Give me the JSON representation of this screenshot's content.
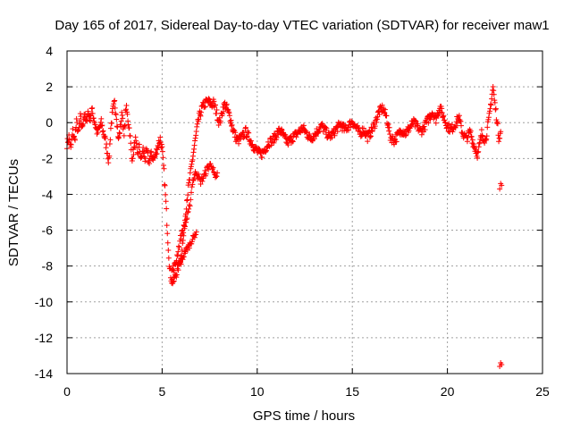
{
  "chart_data": {
    "type": "scatter",
    "title": "Day 165 of 2017, Sidereal Day-to-day VTEC variation (SDTVAR) for receiver maw1",
    "xlabel": "GPS time / hours",
    "ylabel": "SDTVAR / TECUs",
    "xlim": [
      0,
      25
    ],
    "ylim": [
      -14,
      4
    ],
    "x_ticks": [
      0,
      5,
      10,
      15,
      20,
      25
    ],
    "y_ticks": [
      -14,
      -12,
      -10,
      -8,
      -6,
      -4,
      -2,
      0,
      2,
      4
    ],
    "grid": true,
    "marker": "+",
    "color": "#ff0000",
    "series": [
      {
        "name": "SDTVAR",
        "trace": [
          [
            0.0,
            -1.2
          ],
          [
            0.1,
            -0.8
          ],
          [
            0.2,
            -1.5
          ],
          [
            0.3,
            -0.5
          ],
          [
            0.4,
            -1.0
          ],
          [
            0.5,
            0.0
          ],
          [
            0.6,
            -0.6
          ],
          [
            0.7,
            0.3
          ],
          [
            0.8,
            -0.3
          ],
          [
            0.9,
            0.5
          ],
          [
            1.0,
            0.0
          ],
          [
            1.1,
            0.6
          ],
          [
            1.2,
            0.2
          ],
          [
            1.3,
            0.7
          ],
          [
            1.4,
            0.3
          ],
          [
            1.5,
            -0.2
          ],
          [
            1.6,
            -0.6
          ],
          [
            1.7,
            -0.3
          ],
          [
            1.8,
            0.0
          ],
          [
            1.9,
            -0.5
          ],
          [
            2.0,
            -0.9
          ],
          [
            2.1,
            -1.5
          ],
          [
            2.2,
            -2.2
          ],
          [
            2.3,
            -0.3
          ],
          [
            2.4,
            0.6
          ],
          [
            2.5,
            1.1
          ],
          [
            2.6,
            0.4
          ],
          [
            2.7,
            -1.0
          ],
          [
            2.8,
            -0.3
          ],
          [
            2.9,
            0.6
          ],
          [
            3.0,
            -0.8
          ],
          [
            3.1,
            0.9
          ],
          [
            3.2,
            0.2
          ],
          [
            3.3,
            -0.5
          ],
          [
            3.4,
            -2.0
          ],
          [
            3.5,
            -1.6
          ],
          [
            3.6,
            -1.0
          ],
          [
            3.7,
            -1.8
          ],
          [
            3.8,
            -1.4
          ],
          [
            3.9,
            -2.1
          ],
          [
            4.0,
            -1.5
          ],
          [
            4.1,
            -2.0
          ],
          [
            4.2,
            -1.6
          ],
          [
            4.3,
            -2.2
          ],
          [
            4.4,
            -1.8
          ],
          [
            4.5,
            -1.9
          ],
          [
            4.6,
            -2.0
          ],
          [
            4.7,
            -1.6
          ],
          [
            4.8,
            -1.2
          ],
          [
            4.9,
            -0.9
          ],
          [
            5.0,
            -1.5
          ],
          [
            5.1,
            -2.8
          ],
          [
            5.2,
            -4.5
          ],
          [
            5.3,
            -6.5
          ],
          [
            5.4,
            -8.2
          ],
          [
            5.5,
            -8.8
          ],
          [
            5.6,
            -8.9
          ],
          [
            5.7,
            -8.5
          ],
          [
            5.8,
            -8.3
          ],
          [
            5.9,
            -7.8
          ],
          [
            6.0,
            -7.4
          ],
          [
            6.1,
            -6.6
          ],
          [
            6.2,
            -5.4
          ],
          [
            6.3,
            -4.3
          ],
          [
            6.4,
            -3.5
          ],
          [
            6.5,
            -2.8
          ],
          [
            6.6,
            -2.0
          ],
          [
            6.7,
            -1.3
          ],
          [
            6.8,
            -0.6
          ],
          [
            6.9,
            0.1
          ],
          [
            7.0,
            0.5
          ],
          [
            7.1,
            0.8
          ],
          [
            7.2,
            1.0
          ],
          [
            7.3,
            1.1
          ],
          [
            7.4,
            1.2
          ],
          [
            7.5,
            1.1
          ],
          [
            7.6,
            1.0
          ],
          [
            7.7,
            1.1
          ],
          [
            7.8,
            0.8
          ],
          [
            7.9,
            0.4
          ],
          [
            8.0,
            0.0
          ],
          [
            8.1,
            0.3
          ],
          [
            8.2,
            0.8
          ],
          [
            8.3,
            1.0
          ],
          [
            8.4,
            0.8
          ],
          [
            8.5,
            0.5
          ],
          [
            8.6,
            0.2
          ],
          [
            8.7,
            -0.3
          ],
          [
            8.8,
            -0.6
          ],
          [
            8.9,
            -0.9
          ],
          [
            9.0,
            -1.0
          ],
          [
            9.2,
            -0.8
          ],
          [
            9.4,
            -0.5
          ],
          [
            9.6,
            -0.9
          ],
          [
            9.8,
            -1.3
          ],
          [
            10.0,
            -1.6
          ],
          [
            10.2,
            -1.8
          ],
          [
            10.4,
            -1.5
          ],
          [
            10.6,
            -1.1
          ],
          [
            10.8,
            -1.0
          ],
          [
            11.0,
            -0.7
          ],
          [
            11.2,
            -0.4
          ],
          [
            11.4,
            -0.8
          ],
          [
            11.6,
            -1.1
          ],
          [
            11.8,
            -0.9
          ],
          [
            12.0,
            -0.7
          ],
          [
            12.2,
            -0.5
          ],
          [
            12.4,
            -0.3
          ],
          [
            12.6,
            -0.6
          ],
          [
            12.8,
            -0.9
          ],
          [
            13.0,
            -0.7
          ],
          [
            13.2,
            -0.4
          ],
          [
            13.4,
            -0.2
          ],
          [
            13.6,
            -0.5
          ],
          [
            13.8,
            -0.8
          ],
          [
            14.0,
            -0.6
          ],
          [
            14.2,
            -0.3
          ],
          [
            14.4,
            -0.1
          ],
          [
            14.6,
            -0.4
          ],
          [
            14.8,
            -0.2
          ],
          [
            15.0,
            0.1
          ],
          [
            15.2,
            -0.3
          ],
          [
            15.4,
            -0.6
          ],
          [
            15.6,
            -0.4
          ],
          [
            15.8,
            -0.8
          ],
          [
            16.0,
            -0.5
          ],
          [
            16.2,
            0.0
          ],
          [
            16.4,
            0.6
          ],
          [
            16.6,
            0.8
          ],
          [
            16.8,
            0.3
          ],
          [
            17.0,
            -0.8
          ],
          [
            17.2,
            -1.0
          ],
          [
            17.4,
            -0.7
          ],
          [
            17.6,
            -0.4
          ],
          [
            17.8,
            -0.6
          ],
          [
            18.0,
            -0.3
          ],
          [
            18.2,
            0.0
          ],
          [
            18.4,
            -0.2
          ],
          [
            18.6,
            -0.5
          ],
          [
            18.8,
            -0.2
          ],
          [
            19.0,
            0.2
          ],
          [
            19.2,
            0.6
          ],
          [
            19.4,
            0.2
          ],
          [
            19.6,
            0.9
          ],
          [
            19.8,
            0.3
          ],
          [
            20.0,
            -0.2
          ],
          [
            20.2,
            -0.4
          ],
          [
            20.4,
            -0.1
          ],
          [
            20.6,
            0.3
          ],
          [
            20.8,
            -0.6
          ],
          [
            21.0,
            -0.9
          ],
          [
            21.2,
            -0.5
          ],
          [
            21.4,
            -1.3
          ],
          [
            21.6,
            -1.8
          ],
          [
            21.8,
            -0.6
          ],
          [
            22.0,
            -1.0
          ],
          [
            22.2,
            0.3
          ],
          [
            22.3,
            1.2
          ],
          [
            22.4,
            2.0
          ],
          [
            22.5,
            1.0
          ],
          [
            22.6,
            0.2
          ],
          [
            22.7,
            -0.8
          ],
          [
            22.8,
            -0.5
          ]
        ],
        "trace_lower": [
          [
            5.5,
            -8.3
          ],
          [
            5.7,
            -7.9
          ],
          [
            5.9,
            -6.8
          ],
          [
            6.0,
            -6.3
          ],
          [
            6.2,
            -5.7
          ],
          [
            6.4,
            -5.0
          ],
          [
            6.5,
            -4.2
          ],
          [
            6.6,
            -3.3
          ],
          [
            6.8,
            -2.7
          ],
          [
            7.0,
            -3.3
          ],
          [
            7.2,
            -3.0
          ],
          [
            7.4,
            -2.5
          ],
          [
            7.6,
            -2.3
          ],
          [
            7.8,
            -3.2
          ],
          [
            7.9,
            -2.8
          ]
        ],
        "trace_lower2": [
          [
            5.8,
            -8.0
          ],
          [
            6.0,
            -7.8
          ],
          [
            6.2,
            -7.2
          ],
          [
            6.4,
            -6.9
          ],
          [
            6.6,
            -6.5
          ],
          [
            6.8,
            -6.1
          ]
        ],
        "outliers": [
          [
            22.8,
            -3.4
          ],
          [
            22.85,
            -3.5
          ],
          [
            22.75,
            -3.7
          ],
          [
            22.8,
            -13.4
          ],
          [
            22.85,
            -13.5
          ],
          [
            22.75,
            -13.6
          ]
        ]
      }
    ]
  }
}
